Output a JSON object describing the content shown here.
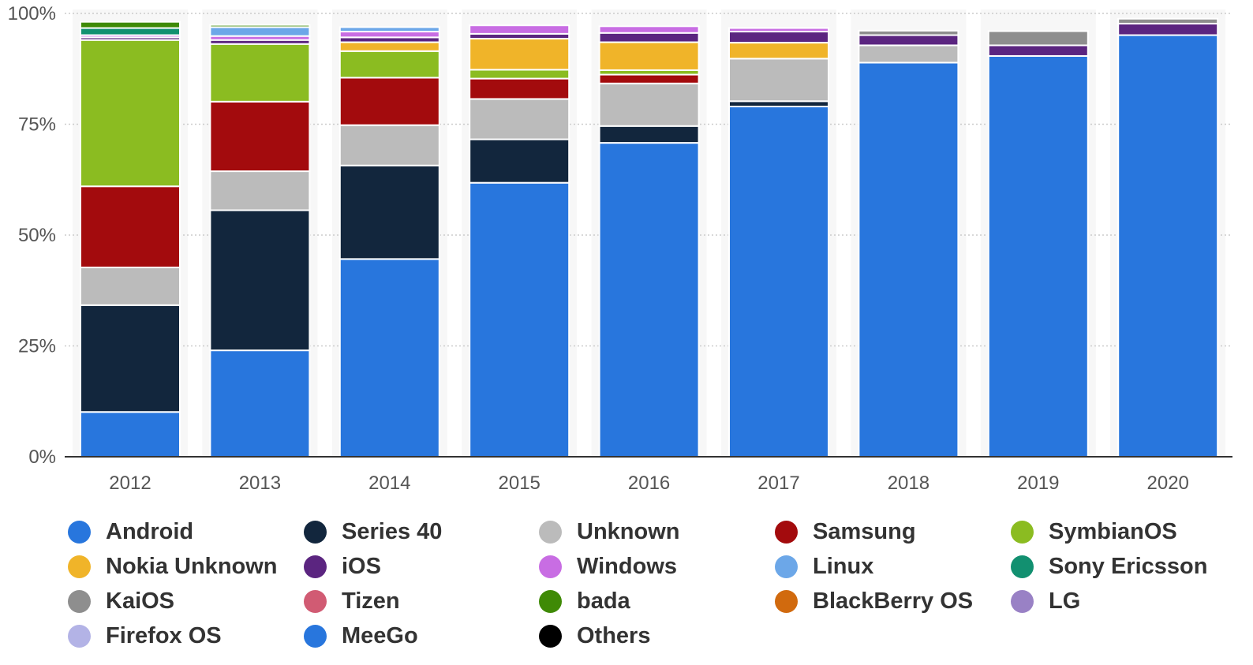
{
  "chart_data": {
    "type": "bar",
    "stacked": true,
    "categories": [
      "2012",
      "2013",
      "2014",
      "2015",
      "2016",
      "2017",
      "2018",
      "2019",
      "2020"
    ],
    "ylim": [
      0,
      100
    ],
    "yticks": [
      "0%",
      "25%",
      "50%",
      "75%",
      "100%"
    ],
    "grid": true,
    "legend_position": "bottom",
    "series": [
      {
        "name": "Android",
        "color": "#2876dd",
        "values": [
          10.1,
          24.0,
          44.6,
          61.8,
          70.8,
          79.0,
          88.9,
          90.4,
          95.1
        ]
      },
      {
        "name": "Series 40",
        "color": "#12263d",
        "values": [
          24.1,
          31.6,
          21.1,
          9.8,
          3.8,
          1.2,
          0,
          0,
          0
        ]
      },
      {
        "name": "Unknown",
        "color": "#bbbbbb",
        "values": [
          8.5,
          8.8,
          9.1,
          9.1,
          9.6,
          9.6,
          3.9,
          0,
          0
        ]
      },
      {
        "name": "Samsung",
        "color": "#a30b0d",
        "values": [
          18.3,
          15.7,
          10.7,
          4.6,
          2.0,
          0,
          0,
          0,
          0
        ]
      },
      {
        "name": "SymbianOS",
        "color": "#8bbc21",
        "values": [
          33.0,
          13.0,
          6.0,
          2.0,
          1.0,
          0,
          0,
          0,
          0
        ]
      },
      {
        "name": "Nokia Unknown",
        "color": "#f0b429",
        "values": [
          0,
          0,
          2.0,
          7.0,
          6.3,
          3.6,
          0,
          0,
          0
        ]
      },
      {
        "name": "iOS",
        "color": "#5b2580",
        "values": [
          0.6,
          0.9,
          1.1,
          1.1,
          2.1,
          2.5,
          2.3,
          2.4,
          2.6
        ]
      },
      {
        "name": "Windows",
        "color": "#c86de3",
        "values": [
          0.5,
          0.9,
          1.3,
          1.9,
          1.5,
          0.8,
          0,
          0,
          0
        ]
      },
      {
        "name": "Linux",
        "color": "#6ca7e8",
        "values": [
          0,
          2.0,
          1.0,
          0,
          0,
          0,
          0,
          0,
          0
        ]
      },
      {
        "name": "Sony Ericsson",
        "color": "#129070",
        "values": [
          1.6,
          0,
          0,
          0,
          0,
          0,
          0,
          0,
          0
        ]
      },
      {
        "name": "KaiOS",
        "color": "#8e8e8e",
        "values": [
          0,
          0,
          0,
          0,
          0,
          0,
          1.0,
          3.2,
          1.1
        ]
      },
      {
        "name": "Tizen",
        "color": "#d15b73",
        "values": [
          0,
          0,
          0,
          0,
          0,
          0,
          0,
          0,
          0
        ]
      },
      {
        "name": "bada",
        "color": "#3f8a06",
        "values": [
          1.4,
          0.5,
          0,
          0,
          0,
          0,
          0,
          0,
          0
        ]
      },
      {
        "name": "BlackBerry OS",
        "color": "#d16a0e",
        "values": [
          0,
          0,
          0,
          0,
          0,
          0,
          0,
          0,
          0
        ]
      },
      {
        "name": "LG",
        "color": "#9981c5",
        "values": [
          0,
          0,
          0,
          0,
          0,
          0,
          0,
          0,
          0
        ]
      },
      {
        "name": "Firefox OS",
        "color": "#b3b3e6",
        "values": [
          0,
          0,
          0,
          0,
          0,
          0,
          0,
          0,
          0
        ]
      },
      {
        "name": "MeeGo",
        "color": "#2876dd",
        "values": [
          0,
          0,
          0,
          0,
          0,
          0,
          0,
          0,
          0
        ]
      },
      {
        "name": "Others",
        "color": "#000000",
        "values": [
          0,
          0,
          0,
          0,
          0,
          0,
          0,
          0,
          0
        ]
      }
    ]
  }
}
